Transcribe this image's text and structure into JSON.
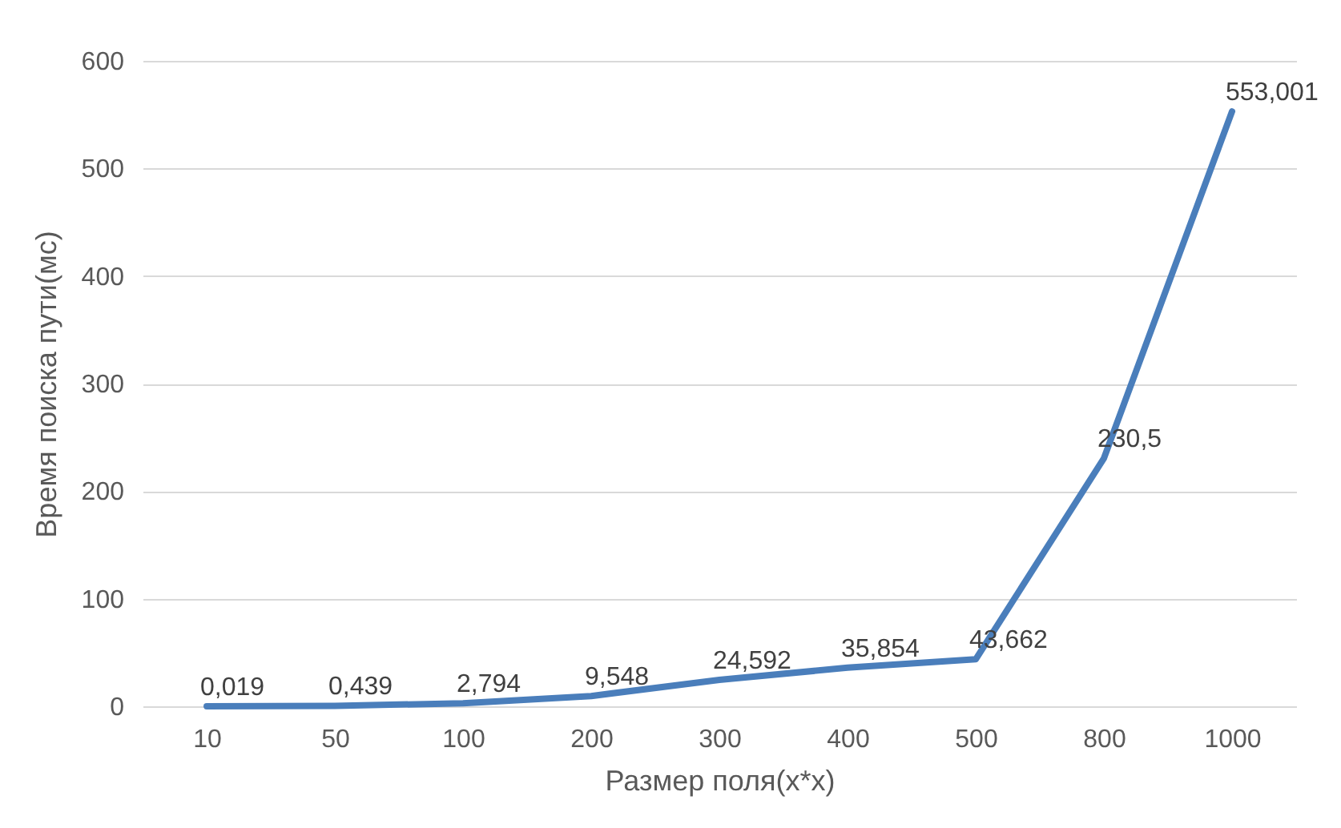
{
  "chart_data": {
    "type": "line",
    "xlabel": "Размер поля(x*x)",
    "ylabel": "Время поиска пути(мс)",
    "categories": [
      "10",
      "50",
      "100",
      "200",
      "300",
      "400",
      "500",
      "800",
      "1000"
    ],
    "series": [
      {
        "color": "#4a7ebb",
        "values": [
          0.019,
          0.439,
          2.794,
          9.548,
          24.592,
          35.854,
          43.662,
          230.5,
          553.001
        ],
        "value_labels": [
          "0,019",
          "0,439",
          "2,794",
          "9,548",
          "24,592",
          "35,854",
          "43,662",
          "230,5",
          "553,001"
        ]
      }
    ],
    "ylim": [
      0,
      600
    ],
    "yticks": [
      0,
      100,
      200,
      300,
      400,
      500,
      600
    ],
    "grid": "y",
    "marker": "none",
    "line_style": "solid"
  }
}
